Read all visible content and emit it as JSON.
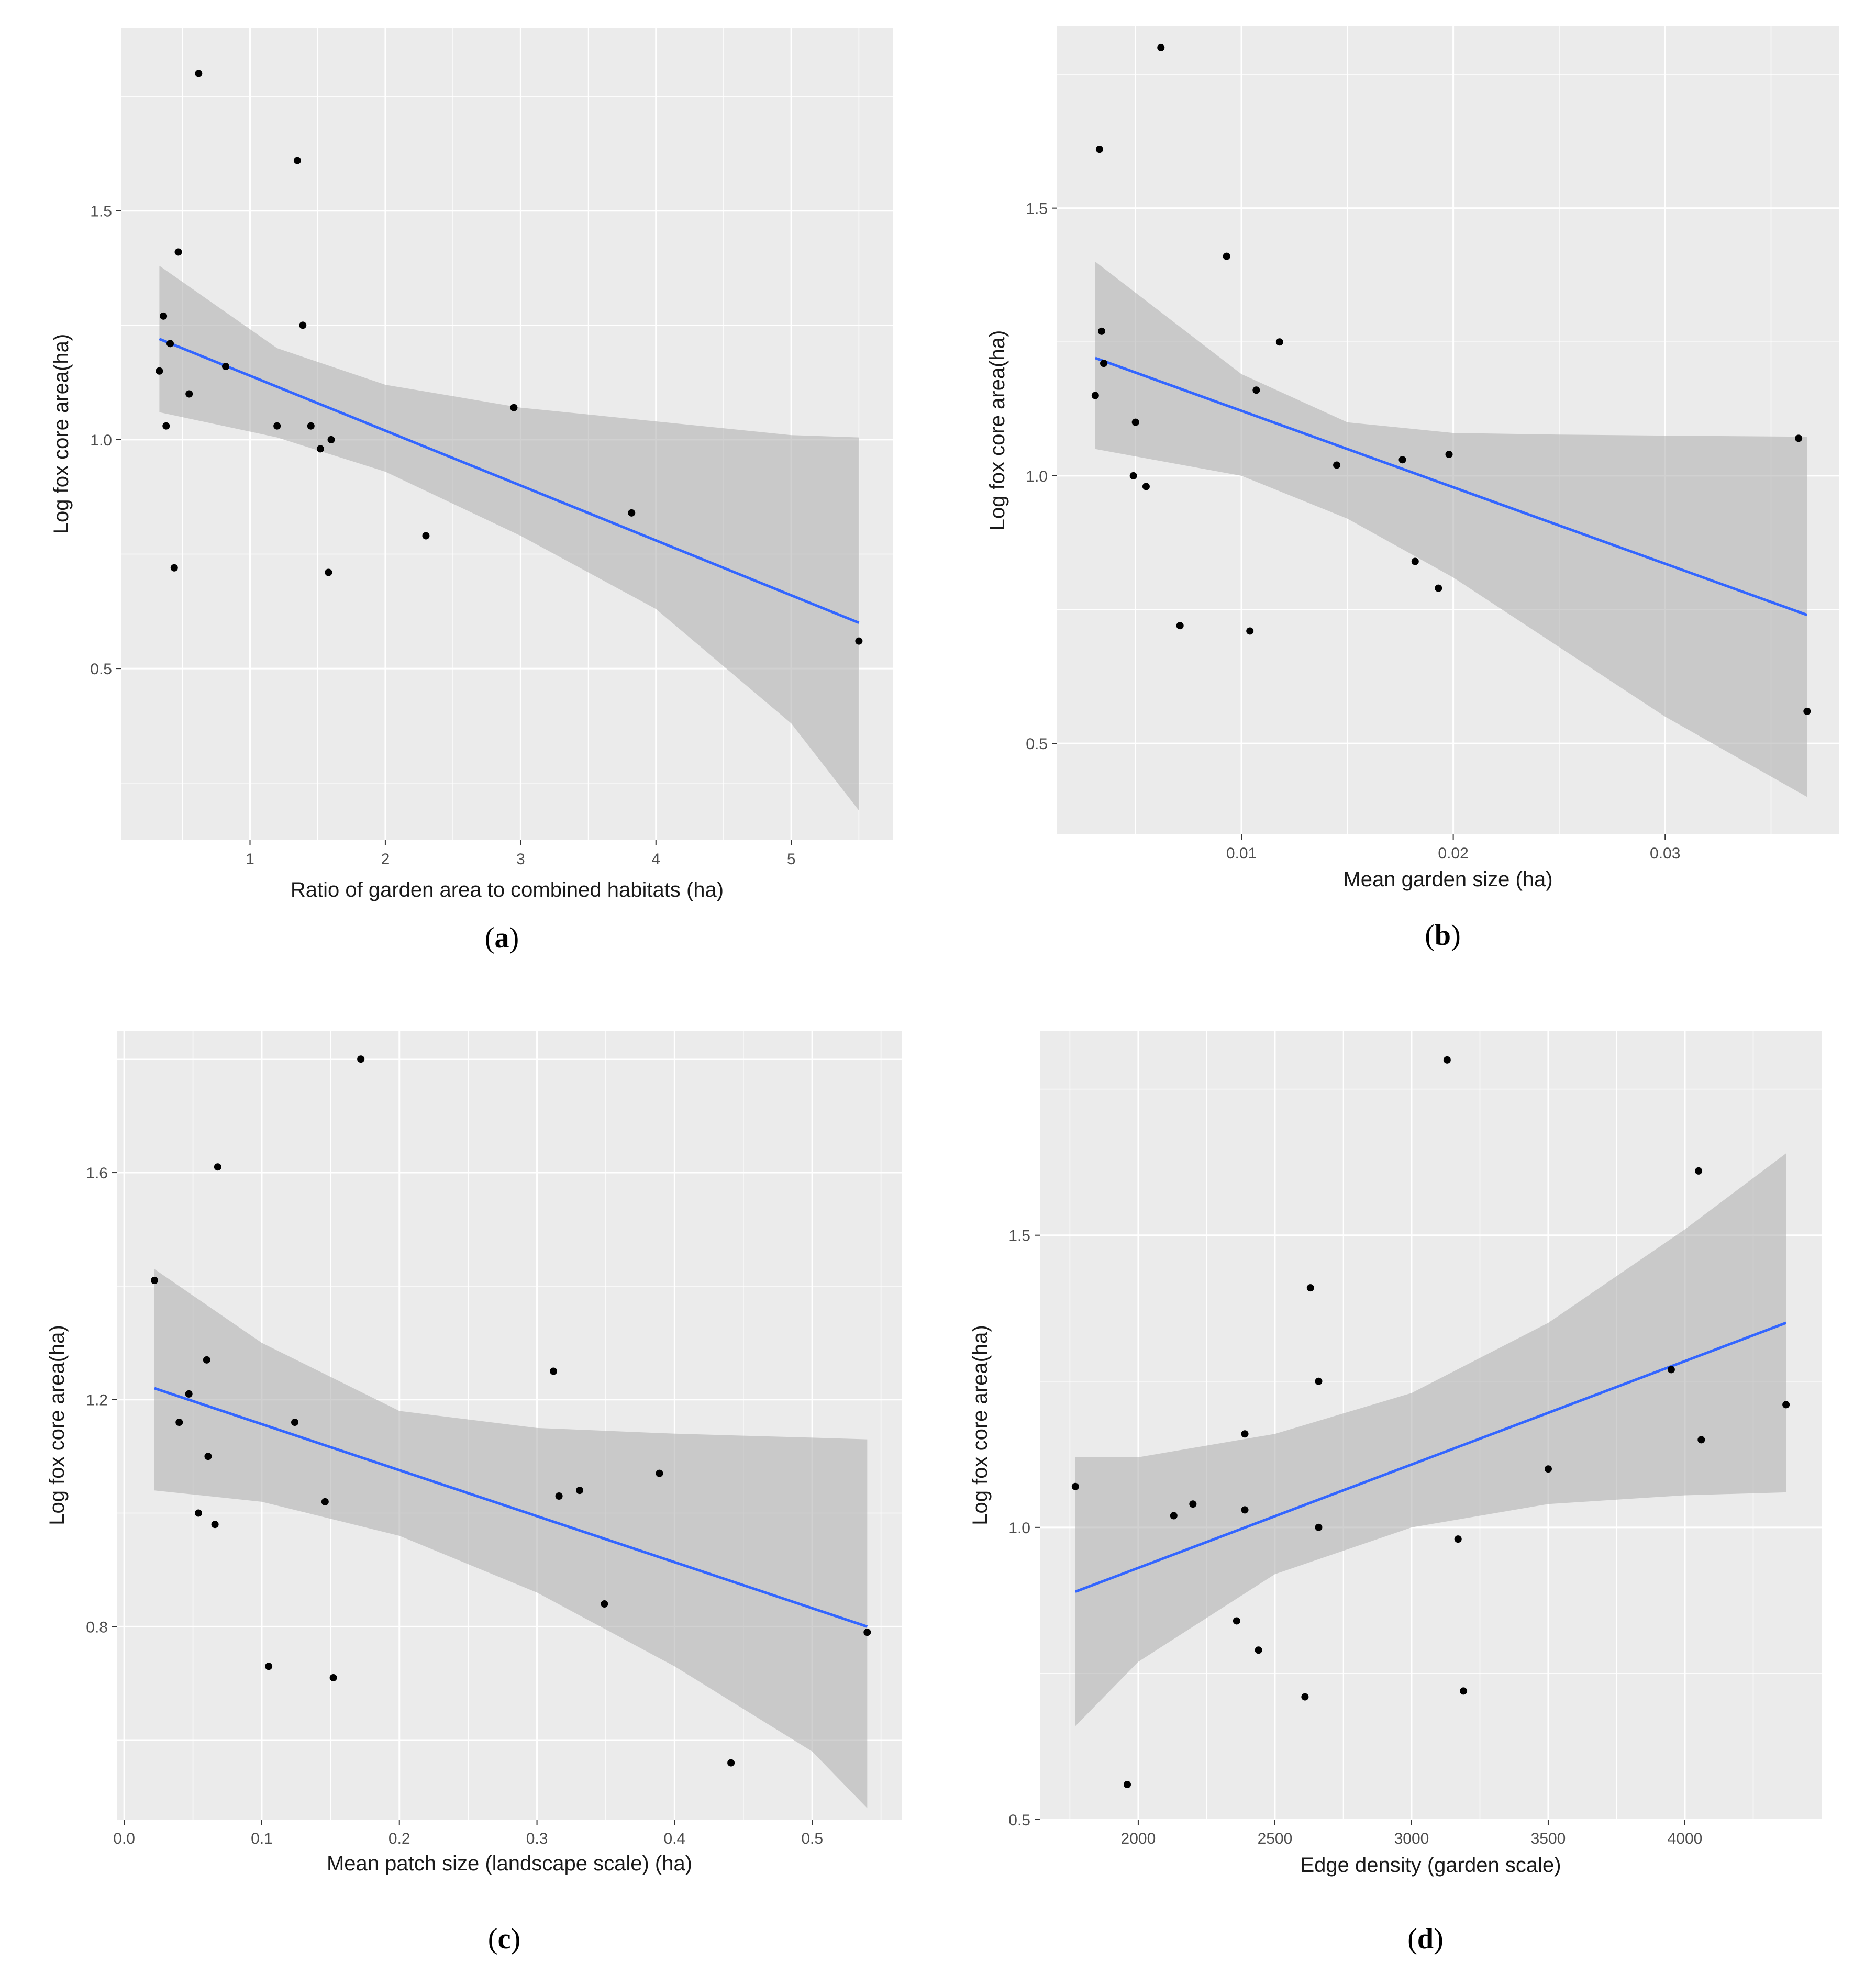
{
  "colors": {
    "panel_bg": "#ebebeb",
    "grid_major": "#ffffff",
    "ci_band": "#b3b3b3",
    "trend_line": "#3366ff",
    "point": "#000000",
    "tick": "#333333"
  },
  "chart_data": [
    {
      "type": "scatter",
      "panel_label": "a",
      "xlabel": "Ratio of garden area to combined habitats (ha)",
      "ylabel": "Log fox core area(ha)",
      "xlim": [
        0.05,
        5.75
      ],
      "ylim": [
        0.125,
        1.9
      ],
      "x_ticks": [
        1,
        2,
        3,
        4,
        5
      ],
      "x_tick_labels": [
        "1",
        "2",
        "3",
        "4",
        "5"
      ],
      "y_ticks": [
        0.5,
        1.0,
        1.5
      ],
      "y_tick_labels": [
        "0.5",
        "1.0",
        "1.5"
      ],
      "points": [
        [
          0.62,
          1.8
        ],
        [
          1.35,
          1.61
        ],
        [
          0.47,
          1.41
        ],
        [
          0.36,
          1.27
        ],
        [
          0.41,
          1.21
        ],
        [
          0.33,
          1.15
        ],
        [
          0.38,
          1.03
        ],
        [
          0.44,
          0.72
        ],
        [
          0.55,
          1.1
        ],
        [
          0.82,
          1.16
        ],
        [
          1.2,
          1.03
        ],
        [
          1.45,
          1.03
        ],
        [
          1.52,
          0.98
        ],
        [
          1.6,
          1.0
        ],
        [
          1.39,
          1.25
        ],
        [
          1.58,
          0.71
        ],
        [
          2.3,
          0.79
        ],
        [
          2.95,
          1.07
        ],
        [
          3.82,
          0.84
        ],
        [
          5.5,
          0.56
        ]
      ],
      "trend": {
        "x": [
          0.33,
          5.5
        ],
        "y": [
          1.22,
          0.6
        ]
      },
      "ci": {
        "x": [
          0.33,
          1.2,
          2.0,
          3.0,
          4.0,
          5.0,
          5.5
        ],
        "lower": [
          1.06,
          1.005,
          0.93,
          0.79,
          0.63,
          0.38,
          0.19
        ],
        "upper": [
          1.38,
          1.2,
          1.12,
          1.07,
          1.04,
          1.01,
          1.005
        ]
      }
    },
    {
      "type": "scatter",
      "panel_label": "b",
      "xlabel": "Mean garden size (ha)",
      "ylabel": "Log fox core area(ha)",
      "xlim": [
        0.0013,
        0.0382
      ],
      "ylim": [
        0.33,
        1.84
      ],
      "x_ticks": [
        0.01,
        0.02,
        0.03
      ],
      "x_tick_labels": [
        "0.01",
        "0.02",
        "0.03"
      ],
      "y_ticks": [
        0.5,
        1.0,
        1.5
      ],
      "y_tick_labels": [
        "0.5",
        "1.0",
        "1.5"
      ],
      "points": [
        [
          0.0062,
          1.8
        ],
        [
          0.0033,
          1.61
        ],
        [
          0.0093,
          1.41
        ],
        [
          0.0034,
          1.27
        ],
        [
          0.0035,
          1.21
        ],
        [
          0.0031,
          1.15
        ],
        [
          0.005,
          1.1
        ],
        [
          0.0049,
          1.0
        ],
        [
          0.0055,
          0.98
        ],
        [
          0.0071,
          0.72
        ],
        [
          0.0104,
          0.71
        ],
        [
          0.0107,
          1.16
        ],
        [
          0.0118,
          1.25
        ],
        [
          0.0145,
          1.02
        ],
        [
          0.0176,
          1.03
        ],
        [
          0.0182,
          0.84
        ],
        [
          0.0198,
          1.04
        ],
        [
          0.0193,
          0.79
        ],
        [
          0.0363,
          1.07
        ],
        [
          0.0367,
          0.56
        ]
      ],
      "trend": {
        "x": [
          0.0031,
          0.0367
        ],
        "y": [
          1.22,
          0.74
        ]
      },
      "ci": {
        "x": [
          0.0031,
          0.01,
          0.015,
          0.02,
          0.025,
          0.03,
          0.0367
        ],
        "lower": [
          1.05,
          1.0,
          0.92,
          0.81,
          0.68,
          0.55,
          0.4
        ],
        "upper": [
          1.4,
          1.19,
          1.1,
          1.08,
          1.077,
          1.075,
          1.073
        ]
      }
    },
    {
      "type": "scatter",
      "panel_label": "c",
      "xlabel": "Mean patch size (landscape scale) (ha)",
      "ylabel": "Log fox core area(ha)",
      "xlim": [
        -0.005,
        0.565
      ],
      "ylim": [
        0.46,
        1.85
      ],
      "x_ticks": [
        0.0,
        0.1,
        0.2,
        0.3,
        0.4,
        0.5
      ],
      "x_tick_labels": [
        "0.0",
        "0.1",
        "0.2",
        "0.3",
        "0.4",
        "0.5"
      ],
      "y_ticks": [
        0.8,
        1.2,
        1.6
      ],
      "y_tick_labels": [
        "0.8",
        "1.2",
        "1.6"
      ],
      "points": [
        [
          0.172,
          1.8
        ],
        [
          0.068,
          1.61
        ],
        [
          0.022,
          1.41
        ],
        [
          0.06,
          1.27
        ],
        [
          0.047,
          1.21
        ],
        [
          0.04,
          1.16
        ],
        [
          0.061,
          1.1
        ],
        [
          0.054,
          1.0
        ],
        [
          0.066,
          0.98
        ],
        [
          0.105,
          0.73
        ],
        [
          0.124,
          1.16
        ],
        [
          0.146,
          1.02
        ],
        [
          0.152,
          0.71
        ],
        [
          0.312,
          1.25
        ],
        [
          0.316,
          1.03
        ],
        [
          0.331,
          1.04
        ],
        [
          0.349,
          0.84
        ],
        [
          0.389,
          1.07
        ],
        [
          0.441,
          0.56
        ],
        [
          0.54,
          0.79
        ]
      ],
      "trend": {
        "x": [
          0.022,
          0.54
        ],
        "y": [
          1.22,
          0.8
        ]
      },
      "ci": {
        "x": [
          0.022,
          0.1,
          0.2,
          0.3,
          0.4,
          0.5,
          0.54
        ],
        "lower": [
          1.04,
          1.02,
          0.96,
          0.86,
          0.73,
          0.58,
          0.48
        ],
        "upper": [
          1.43,
          1.3,
          1.18,
          1.15,
          1.14,
          1.133,
          1.13
        ]
      }
    },
    {
      "type": "scatter",
      "panel_label": "d",
      "xlabel": "Edge density (garden scale)",
      "ylabel": "Log fox core area(ha)",
      "xlim": [
        1640,
        4500
      ],
      "ylim": [
        0.5,
        1.85
      ],
      "x_ticks": [
        2000,
        2500,
        3000,
        3500,
        4000
      ],
      "x_tick_labels": [
        "2000",
        "2500",
        "3000",
        "3500",
        "4000"
      ],
      "y_ticks": [
        0.5,
        1.0,
        1.5
      ],
      "y_tick_labels": [
        "0.5",
        "1.0",
        "1.5"
      ],
      "points": [
        [
          3130,
          1.8
        ],
        [
          4050,
          1.61
        ],
        [
          2630,
          1.41
        ],
        [
          2660,
          1.25
        ],
        [
          3950,
          1.27
        ],
        [
          4060,
          1.15
        ],
        [
          4370,
          1.21
        ],
        [
          2390,
          1.16
        ],
        [
          3500,
          1.1
        ],
        [
          1770,
          1.07
        ],
        [
          2130,
          1.02
        ],
        [
          2200,
          1.04
        ],
        [
          2390,
          1.03
        ],
        [
          2660,
          1.0
        ],
        [
          3170,
          0.98
        ],
        [
          2360,
          0.84
        ],
        [
          2440,
          0.79
        ],
        [
          3190,
          0.72
        ],
        [
          2610,
          0.71
        ],
        [
          1960,
          0.56
        ]
      ],
      "trend": {
        "x": [
          1770,
          4370
        ],
        "y": [
          0.89,
          1.35
        ]
      },
      "ci": {
        "x": [
          1770,
          2000,
          2500,
          3000,
          3500,
          4000,
          4370
        ],
        "lower": [
          0.66,
          0.77,
          0.92,
          1.0,
          1.04,
          1.055,
          1.06
        ],
        "upper": [
          1.12,
          1.12,
          1.16,
          1.23,
          1.35,
          1.51,
          1.64
        ]
      }
    }
  ]
}
